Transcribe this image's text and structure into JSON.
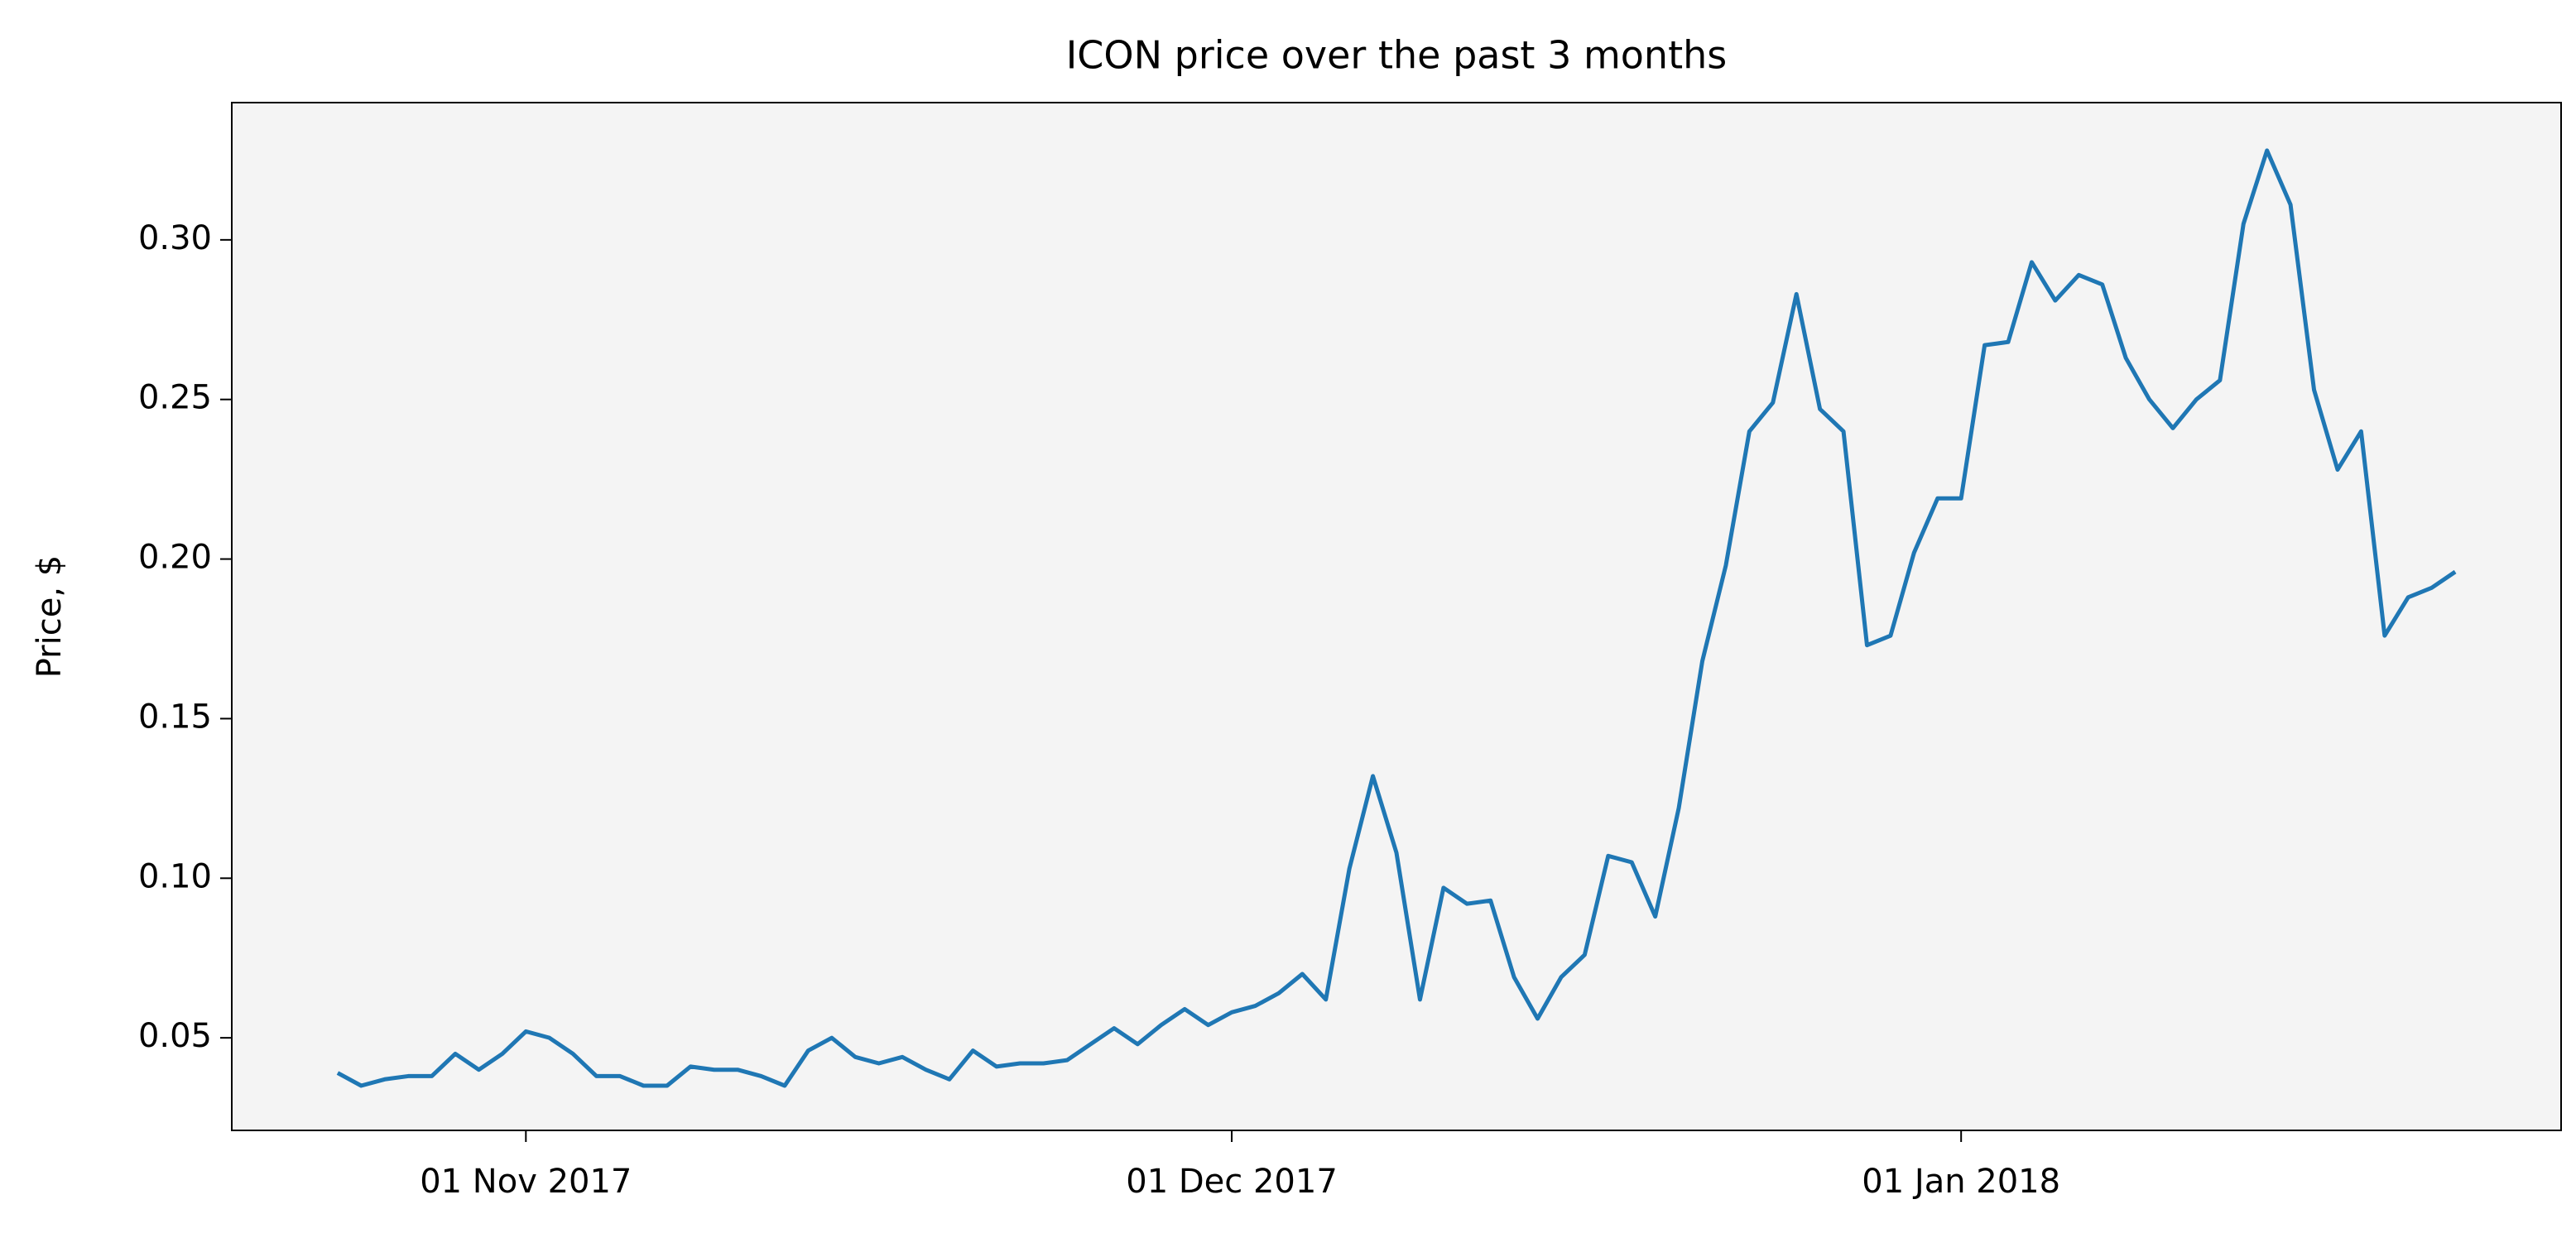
{
  "chart_data": {
    "type": "line",
    "title": "ICON price over the past 3 months",
    "ylabel": "Price, $",
    "x": [
      "2017-10-24",
      "2017-10-25",
      "2017-10-26",
      "2017-10-27",
      "2017-10-28",
      "2017-10-29",
      "2017-10-30",
      "2017-10-31",
      "2017-11-01",
      "2017-11-02",
      "2017-11-03",
      "2017-11-04",
      "2017-11-05",
      "2017-11-06",
      "2017-11-07",
      "2017-11-08",
      "2017-11-09",
      "2017-11-10",
      "2017-11-11",
      "2017-11-12",
      "2017-11-13",
      "2017-11-14",
      "2017-11-15",
      "2017-11-16",
      "2017-11-17",
      "2017-11-18",
      "2017-11-19",
      "2017-11-20",
      "2017-11-21",
      "2017-11-22",
      "2017-11-23",
      "2017-11-24",
      "2017-11-25",
      "2017-11-26",
      "2017-11-27",
      "2017-11-28",
      "2017-11-29",
      "2017-11-30",
      "2017-12-01",
      "2017-12-02",
      "2017-12-03",
      "2017-12-04",
      "2017-12-05",
      "2017-12-06",
      "2017-12-07",
      "2017-12-08",
      "2017-12-09",
      "2017-12-10",
      "2017-12-11",
      "2017-12-12",
      "2017-12-13",
      "2017-12-14",
      "2017-12-15",
      "2017-12-16",
      "2017-12-17",
      "2017-12-18",
      "2017-12-19",
      "2017-12-20",
      "2017-12-21",
      "2017-12-22",
      "2017-12-23",
      "2017-12-24",
      "2017-12-25",
      "2017-12-26",
      "2017-12-27",
      "2017-12-28",
      "2017-12-29",
      "2017-12-30",
      "2017-12-31",
      "2018-01-01",
      "2018-01-02",
      "2018-01-03",
      "2018-01-04",
      "2018-01-05",
      "2018-01-06",
      "2018-01-07",
      "2018-01-08",
      "2018-01-09",
      "2018-01-10",
      "2018-01-11",
      "2018-01-12",
      "2018-01-13",
      "2018-01-14",
      "2018-01-15",
      "2018-01-16",
      "2018-01-17",
      "2018-01-18",
      "2018-01-19",
      "2018-01-20",
      "2018-01-21",
      "2018-01-22"
    ],
    "series": [
      {
        "color": "#1f77b4",
        "values": [
          0.039,
          0.035,
          0.037,
          0.038,
          0.038,
          0.045,
          0.04,
          0.045,
          0.052,
          0.05,
          0.045,
          0.038,
          0.038,
          0.035,
          0.035,
          0.041,
          0.04,
          0.04,
          0.038,
          0.035,
          0.046,
          0.05,
          0.044,
          0.042,
          0.044,
          0.04,
          0.037,
          0.046,
          0.041,
          0.042,
          0.042,
          0.043,
          0.048,
          0.053,
          0.048,
          0.054,
          0.059,
          0.054,
          0.058,
          0.06,
          0.064,
          0.07,
          0.062,
          0.103,
          0.132,
          0.108,
          0.062,
          0.097,
          0.092,
          0.093,
          0.069,
          0.056,
          0.069,
          0.076,
          0.107,
          0.105,
          0.088,
          0.122,
          0.168,
          0.198,
          0.24,
          0.249,
          0.283,
          0.247,
          0.24,
          0.173,
          0.176,
          0.202,
          0.219,
          0.219,
          0.267,
          0.268,
          0.293,
          0.281,
          0.289,
          0.286,
          0.263,
          0.25,
          0.241,
          0.25,
          0.256,
          0.305,
          0.328,
          0.311,
          0.253,
          0.228,
          0.24,
          0.176,
          0.188,
          0.191,
          0.196
        ]
      }
    ],
    "xlim": [
      "2017-10-19T12:00:00Z",
      "2018-01-26T12:00:00Z"
    ],
    "xticks": [
      {
        "value": "2017-11-01",
        "label": "01 Nov 2017"
      },
      {
        "value": "2017-12-01",
        "label": "01 Dec 2017"
      },
      {
        "value": "2018-01-01",
        "label": "01 Jan 2018"
      }
    ],
    "ylim": [
      0.021,
      0.343
    ],
    "yticks": [
      0.05,
      {
        "value": 0.1,
        "label": "0.10"
      },
      0.15,
      {
        "value": 0.2,
        "label": "0.20"
      },
      0.25,
      {
        "value": 0.3,
        "label": "0.30"
      }
    ],
    "grid": false,
    "background": "#f4f4f4"
  }
}
